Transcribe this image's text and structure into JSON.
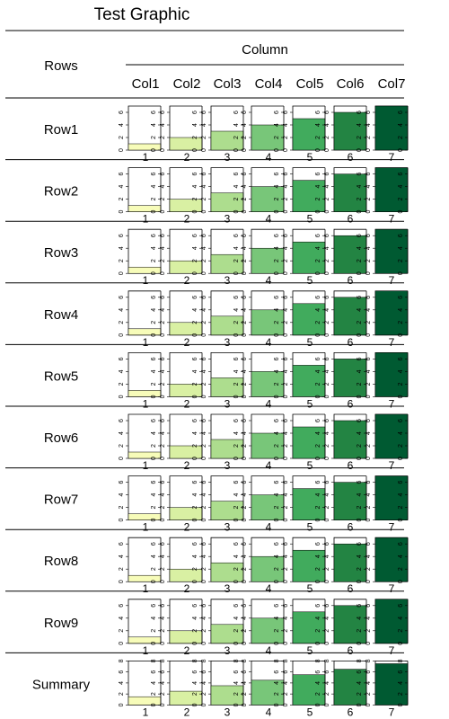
{
  "title": "Test Graphic",
  "header": {
    "rows_label": "Rows",
    "column_label": "Column"
  },
  "chart_data": {
    "type": "bar",
    "columns": [
      "Col1",
      "Col2",
      "Col3",
      "Col4",
      "Col5",
      "Col6",
      "Col7"
    ],
    "colors": [
      "#f7fcb9",
      "#d9f0a3",
      "#addd8e",
      "#78c679",
      "#41ab5d",
      "#238443",
      "#005a32"
    ],
    "rows": [
      {
        "name": "Row1",
        "ylim": [
          0,
          7
        ],
        "y_ticks": [
          0,
          2,
          4,
          6
        ],
        "values": [
          1,
          2,
          3,
          4,
          5,
          6,
          7
        ],
        "x_labels": [
          "1",
          "2",
          "3",
          "4",
          "5",
          "6",
          "7"
        ]
      },
      {
        "name": "Row2",
        "ylim": [
          0,
          7
        ],
        "y_ticks": [
          0,
          2,
          4,
          6
        ],
        "values": [
          1,
          2,
          3,
          4,
          5,
          6,
          7
        ],
        "x_labels": [
          "1",
          "2",
          "3",
          "4",
          "5",
          "6",
          "7"
        ]
      },
      {
        "name": "Row3",
        "ylim": [
          0,
          7
        ],
        "y_ticks": [
          0,
          2,
          4,
          6
        ],
        "values": [
          1,
          2,
          3,
          4,
          5,
          6,
          7
        ],
        "x_labels": [
          "1",
          "2",
          "3",
          "4",
          "5",
          "6",
          "7"
        ]
      },
      {
        "name": "Row4",
        "ylim": [
          0,
          7
        ],
        "y_ticks": [
          0,
          2,
          4,
          6
        ],
        "values": [
          1,
          2,
          3,
          4,
          5,
          6,
          7
        ],
        "x_labels": [
          "1",
          "2",
          "3",
          "4",
          "5",
          "6",
          "7"
        ]
      },
      {
        "name": "Row5",
        "ylim": [
          0,
          7
        ],
        "y_ticks": [
          0,
          2,
          4,
          6
        ],
        "values": [
          1,
          2,
          3,
          4,
          5,
          6,
          7
        ],
        "x_labels": [
          "1",
          "2",
          "3",
          "4",
          "5",
          "6",
          "7"
        ]
      },
      {
        "name": "Row6",
        "ylim": [
          0,
          7
        ],
        "y_ticks": [
          0,
          2,
          4,
          6
        ],
        "values": [
          1,
          2,
          3,
          4,
          5,
          6,
          7
        ],
        "x_labels": [
          "1",
          "2",
          "3",
          "4",
          "5",
          "6",
          "7"
        ]
      },
      {
        "name": "Row7",
        "ylim": [
          0,
          7
        ],
        "y_ticks": [
          0,
          2,
          4,
          6
        ],
        "values": [
          1,
          2,
          3,
          4,
          5,
          6,
          7
        ],
        "x_labels": [
          "1",
          "2",
          "3",
          "4",
          "5",
          "6",
          "7"
        ]
      },
      {
        "name": "Row8",
        "ylim": [
          0,
          7
        ],
        "y_ticks": [
          0,
          2,
          4,
          6
        ],
        "values": [
          1,
          2,
          3,
          4,
          5,
          6,
          7
        ],
        "x_labels": [
          "1",
          "2",
          "3",
          "4",
          "5",
          "6",
          "7"
        ]
      },
      {
        "name": "Row9",
        "ylim": [
          0,
          7
        ],
        "y_ticks": [
          0,
          2,
          4,
          6
        ],
        "values": [
          1,
          2,
          3,
          4,
          5,
          6,
          7
        ],
        "x_labels": [
          "1",
          "2",
          "3",
          "4",
          "5",
          "6",
          "7"
        ]
      },
      {
        "name": "Summary",
        "ylim": [
          0,
          8
        ],
        "y_ticks": [
          0,
          2,
          4,
          6,
          8
        ],
        "values": [
          1.5,
          2.5,
          3.5,
          4.5,
          5.5,
          6.5,
          7.5
        ],
        "x_labels": [
          "1",
          "2",
          "3",
          "4",
          "5",
          "6",
          "7"
        ]
      }
    ]
  }
}
